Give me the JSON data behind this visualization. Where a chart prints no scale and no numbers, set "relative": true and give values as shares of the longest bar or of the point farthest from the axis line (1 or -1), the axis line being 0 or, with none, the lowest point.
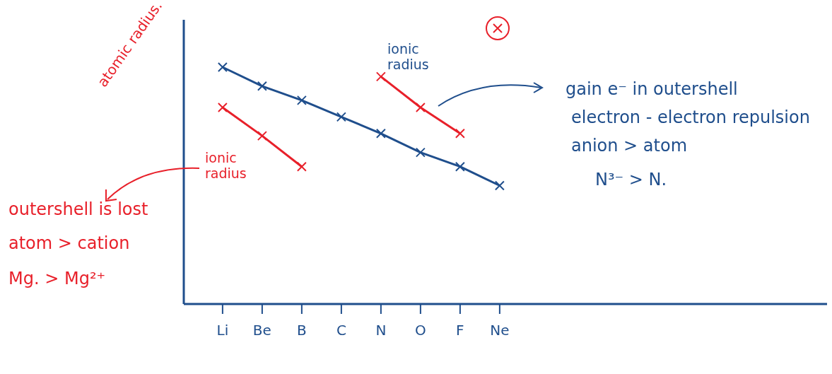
{
  "chart_data": {
    "type": "line",
    "relative": true,
    "ylabel": "atomic radius.",
    "categories": [
      "Li",
      "Be",
      "B",
      "C",
      "N",
      "O",
      "F",
      "Ne"
    ],
    "series": [
      {
        "color": "#1f4e8c",
        "values": [
          1,
          0.92,
          0.86,
          0.79,
          0.72,
          0.64,
          0.58,
          0.5
        ]
      },
      {
        "name": "ionic radius",
        "color": "#e8202a",
        "values": [
          0.83,
          0.71,
          0.58,
          null,
          null,
          null,
          null,
          null
        ]
      },
      {
        "name": "ionic radius",
        "color": "#e8202a",
        "values": [
          null,
          null,
          null,
          null,
          0.96,
          0.83,
          0.72,
          null
        ]
      }
    ],
    "annotations": [
      "gain e⁻ in outershell",
      "electron - electron repulsion",
      "anion > atom",
      "N³⁻ > N.",
      "outershell is lost",
      "atom > cation",
      "Mg. > Mg²⁺"
    ],
    "marker": "cross",
    "line_style": "solid",
    "grid": false,
    "legend": false
  }
}
